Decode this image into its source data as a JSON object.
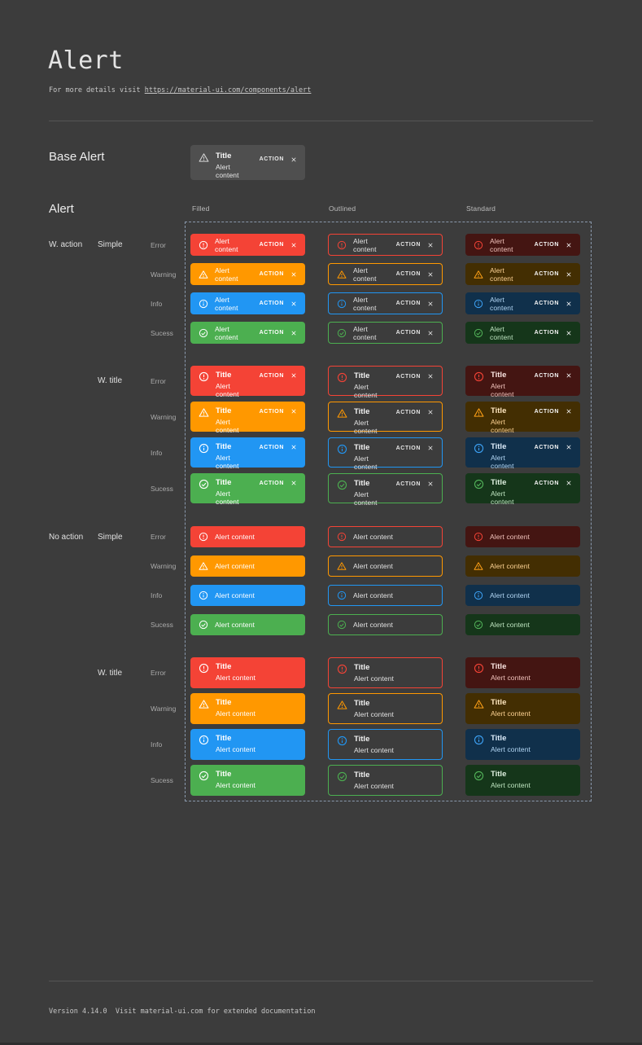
{
  "page": {
    "title": "Alert",
    "subtitle_prefix": "For more details visit ",
    "subtitle_link": "https://material-ui.com/components/alert",
    "footer": "Version 4.14.0  Visit material-ui.com for extended documentation"
  },
  "base_alert": {
    "section_label": "Base Alert",
    "title": "Title",
    "content": "Alert content",
    "action_label": "ACTION"
  },
  "alert_grid": {
    "section_label": "Alert",
    "column_headers": [
      "Filled",
      "Outlined",
      "Standard"
    ],
    "variants": [
      "filled",
      "outlined",
      "standard"
    ],
    "severities": [
      {
        "key": "error",
        "label": "Error"
      },
      {
        "key": "warning",
        "label": "Warning"
      },
      {
        "key": "info",
        "label": "Info"
      },
      {
        "key": "success",
        "label": "Sucess"
      }
    ],
    "groups": [
      {
        "label": "W. action",
        "with_action": true,
        "subgroups": [
          {
            "label": "Simple",
            "with_title": false
          },
          {
            "label": "W. title",
            "with_title": true
          }
        ]
      },
      {
        "label": "No action",
        "with_action": false,
        "subgroups": [
          {
            "label": "Simple",
            "with_title": false
          },
          {
            "label": "W. title",
            "with_title": true
          }
        ]
      }
    ],
    "texts": {
      "title": "Title",
      "content": "Alert content",
      "action": "ACTION"
    }
  },
  "colors": {
    "page_bg": "#3c3c3c",
    "error": "#f44336",
    "warning": "#ff9800",
    "info": "#2196f3",
    "success": "#4caf50",
    "standard_bg": {
      "error": "#441512",
      "warning": "#432e02",
      "info": "#10304b",
      "success": "#15361a"
    },
    "base_alert_bg": "#4f4f4f",
    "dashed_border": "#8a99ad"
  }
}
